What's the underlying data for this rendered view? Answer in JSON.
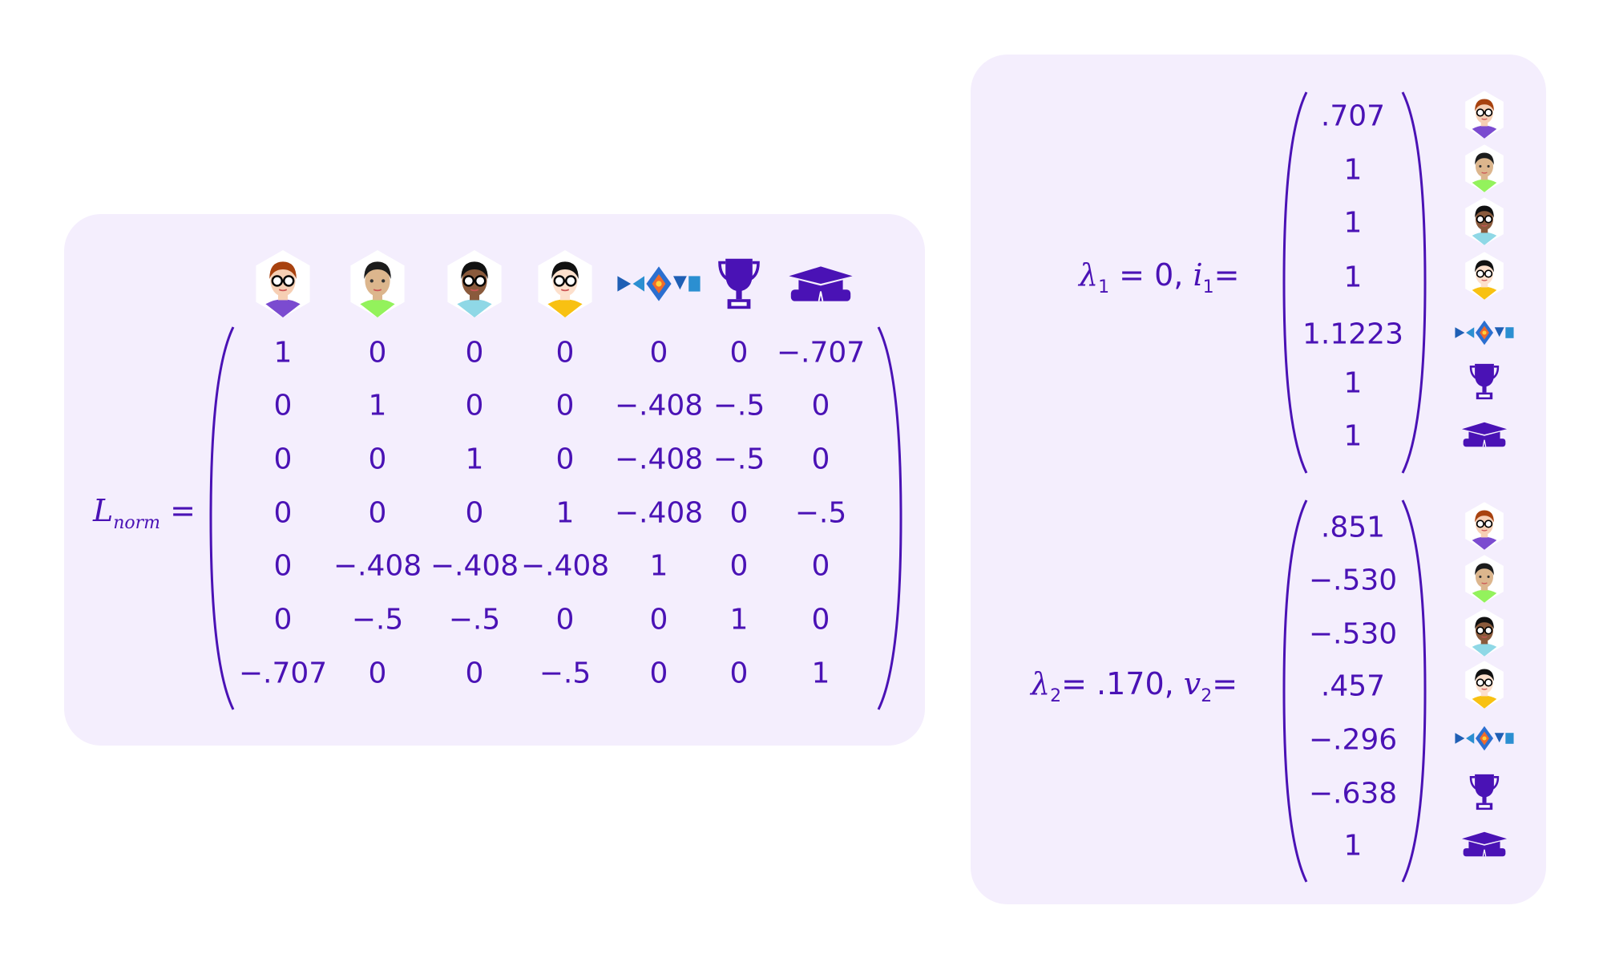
{
  "colors": {
    "text": "#4a12b5",
    "panel": "#f4eefd"
  },
  "node_icons": [
    {
      "name": "person-woman-red-hair",
      "hair": "#a8420f",
      "skin": "#f6cfb4",
      "shirt": "#7b4bd0",
      "glasses": true
    },
    {
      "name": "person-man-mustache",
      "hair": "#1c1c1c",
      "skin": "#dcb68d",
      "shirt": "#93f25c",
      "glasses": false
    },
    {
      "name": "person-woman-curly-hair",
      "hair": "#111111",
      "skin": "#8a5a3c",
      "shirt": "#8fd8e6",
      "glasses": true
    },
    {
      "name": "person-woman-bun",
      "hair": "#111111",
      "skin": "#fde0cc",
      "shirt": "#f8c112",
      "glasses": true
    },
    {
      "name": "kdd-logo-icon"
    },
    {
      "name": "trophy-icon"
    },
    {
      "name": "graduation-cap-icon"
    }
  ],
  "matrix": {
    "label_main": "L",
    "label_sub": "norm",
    "equals": "=",
    "rows": [
      [
        "1",
        "0",
        "0",
        "0",
        "0",
        "0",
        "−.707"
      ],
      [
        "0",
        "1",
        "0",
        "0",
        "−.408",
        "−.5",
        "0"
      ],
      [
        "0",
        "0",
        "1",
        "0",
        "−.408",
        "−.5",
        "0"
      ],
      [
        "0",
        "0",
        "0",
        "1",
        "−.408",
        "0",
        "−.5"
      ],
      [
        "0",
        "−.408",
        "−.408",
        "−.408",
        "1",
        "0",
        "0"
      ],
      [
        "0",
        "−.5",
        "−.5",
        "0",
        "0",
        "1",
        "0"
      ],
      [
        "−.707",
        "0",
        "0",
        "−.5",
        "0",
        "0",
        "1"
      ]
    ]
  },
  "eigen": [
    {
      "lambda": "λ",
      "lambda_sub": "1",
      "value_text": " = 0, ",
      "vec": "i",
      "vec_sub": "1",
      "equals": "=",
      "values": [
        ".707",
        "1",
        "1",
        "1",
        "1.1223",
        "1",
        "1"
      ]
    },
    {
      "lambda": "λ",
      "lambda_sub": "2",
      "value_text": "= .170, ",
      "vec": "v",
      "vec_sub": "2",
      "equals": "=",
      "values": [
        ".851",
        "−.530",
        "−.530",
        ".457",
        "−.296",
        "−.638",
        "1"
      ]
    }
  ]
}
